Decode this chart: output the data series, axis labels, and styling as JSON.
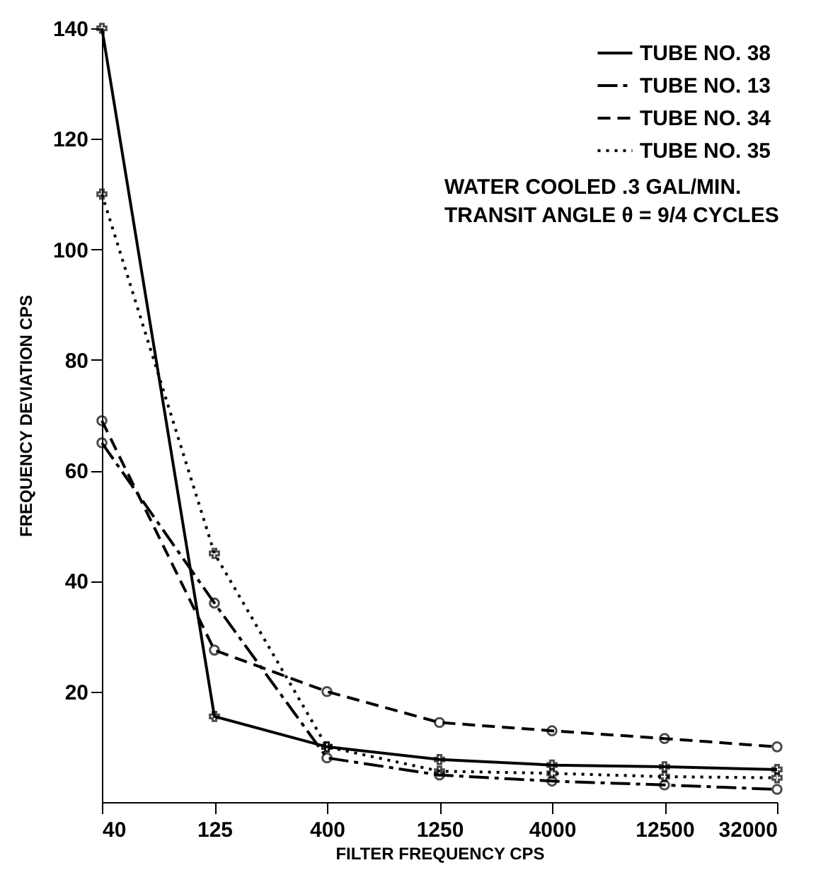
{
  "chart_data": {
    "type": "line",
    "xlabel": "FILTER FREQUENCY CPS",
    "ylabel": "FREQUENCY DEVIATION CPS",
    "categories": [
      "40",
      "125",
      "400",
      "1250",
      "4000",
      "12500",
      "32000"
    ],
    "series": [
      {
        "name": "TUBE NO. 38",
        "color": "#000000",
        "line_style": "solid",
        "marker": "cross",
        "values": [
          140,
          15.5,
          10,
          7.7,
          6.7,
          6.4,
          5.9
        ]
      },
      {
        "name": "TUBE NO. 13",
        "color": "#000000",
        "line_style": "dashdot",
        "marker": "circle",
        "values": [
          65,
          36,
          8,
          4.9,
          3.8,
          3.1,
          2.3
        ]
      },
      {
        "name": "TUBE NO. 34",
        "color": "#000000",
        "line_style": "dashed",
        "marker": "circle",
        "values": [
          69,
          27.5,
          20,
          14.4,
          12.9,
          11.5,
          10
        ]
      },
      {
        "name": "TUBE NO. 35",
        "color": "#000000",
        "line_style": "dotted",
        "marker": "cross",
        "values": [
          110,
          45,
          10,
          5.6,
          5.2,
          4.6,
          4.4
        ]
      }
    ],
    "ylim": [
      0,
      140
    ],
    "yticks": [
      20,
      40,
      60,
      80,
      100,
      120,
      140
    ],
    "grid": false,
    "legend": "top right",
    "annotations": [
      "WATER COOLED .3 GAL/MIN.",
      "TRANSIT ANGLE θ = 9/4 CYCLES"
    ]
  }
}
